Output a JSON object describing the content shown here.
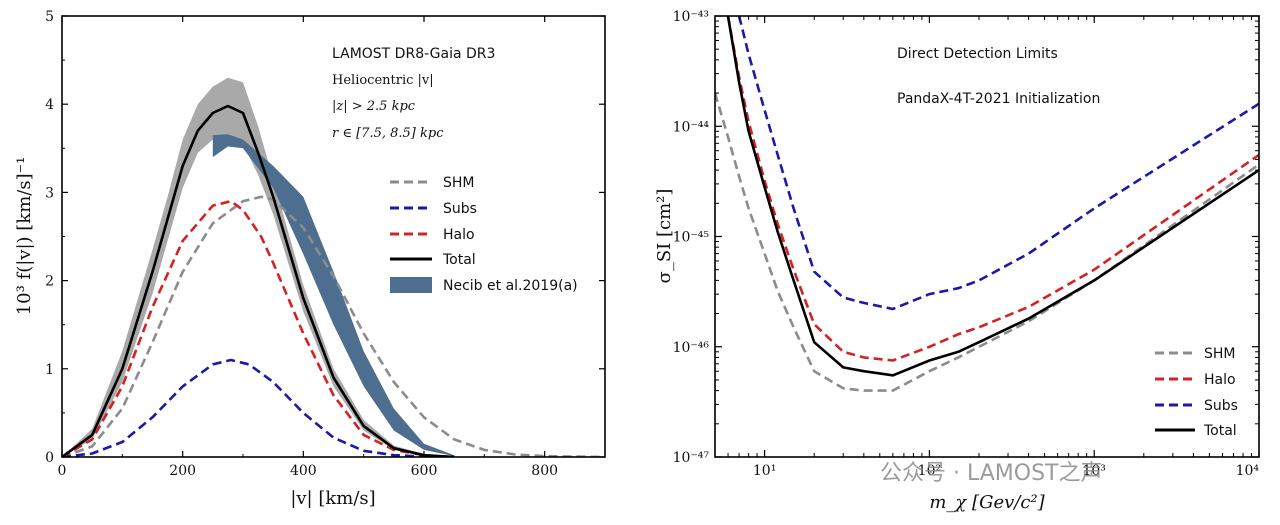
{
  "chart_data": [
    {
      "type": "line",
      "xlabel": "|v| [km/s]",
      "ylabel": "10³ f(|v|) [km/s]⁻¹",
      "xlim": [
        0,
        900
      ],
      "ylim": [
        0,
        5
      ],
      "xticks": [
        "0",
        "200",
        "400",
        "600",
        "800"
      ],
      "yticks": [
        "0",
        "1",
        "2",
        "3",
        "4",
        "5"
      ],
      "annotations": [
        "LAMOST DR8-Gaia DR3",
        "Heliocentric |v|",
        "|z| > 2.5 kpc",
        "r ∈ [7.5, 8.5] kpc"
      ],
      "legend_position": "center-right",
      "series": [
        {
          "name": "SHM",
          "style": "dashed",
          "color": "#8c8c8c",
          "x": [
            0,
            50,
            100,
            150,
            200,
            250,
            300,
            330,
            350,
            400,
            450,
            500,
            550,
            600,
            650,
            700,
            750,
            800,
            900
          ],
          "y": [
            0,
            0.12,
            0.55,
            1.3,
            2.1,
            2.65,
            2.9,
            2.95,
            2.92,
            2.6,
            2.05,
            1.4,
            0.85,
            0.45,
            0.2,
            0.08,
            0.03,
            0.01,
            0
          ]
        },
        {
          "name": "Subs",
          "style": "dashed",
          "color": "#1a1aa6",
          "x": [
            0,
            50,
            100,
            150,
            200,
            250,
            280,
            310,
            350,
            400,
            450,
            500,
            550,
            600,
            650
          ],
          "y": [
            0,
            0.04,
            0.17,
            0.45,
            0.8,
            1.05,
            1.1,
            1.05,
            0.85,
            0.5,
            0.22,
            0.07,
            0.02,
            0.005,
            0
          ]
        },
        {
          "name": "Halo",
          "style": "dashed",
          "color": "#d42222",
          "x": [
            0,
            50,
            100,
            150,
            200,
            250,
            280,
            300,
            330,
            350,
            400,
            450,
            500,
            550,
            600,
            650
          ],
          "y": [
            0,
            0.2,
            0.8,
            1.7,
            2.45,
            2.85,
            2.9,
            2.8,
            2.5,
            2.2,
            1.4,
            0.7,
            0.25,
            0.08,
            0.02,
            0
          ]
        },
        {
          "name": "Total",
          "style": "solid",
          "color": "#000000",
          "x": [
            0,
            50,
            100,
            150,
            175,
            200,
            225,
            250,
            275,
            300,
            325,
            350,
            400,
            450,
            500,
            550,
            600,
            650
          ],
          "y": [
            0,
            0.25,
            1.0,
            2.1,
            2.7,
            3.3,
            3.7,
            3.9,
            3.98,
            3.9,
            3.45,
            2.95,
            1.8,
            0.9,
            0.35,
            0.1,
            0.02,
            0
          ]
        }
      ],
      "bands": [
        {
          "name": "Necib et al.2019(a)",
          "color": "#4d6e8e",
          "x": [
            250,
            275,
            300,
            350,
            400,
            450,
            500,
            550,
            600,
            650
          ],
          "lower": [
            3.4,
            3.52,
            3.5,
            3.05,
            2.3,
            1.5,
            0.8,
            0.3,
            0.08,
            0.01
          ],
          "upper": [
            3.65,
            3.66,
            3.6,
            3.3,
            2.95,
            2.1,
            1.2,
            0.55,
            0.15,
            0.02
          ]
        },
        {
          "name": "",
          "color": "#9a9a9a",
          "x": [
            0,
            50,
            100,
            150,
            175,
            200,
            225,
            250,
            275,
            300,
            325,
            350,
            400,
            450,
            500,
            550,
            600,
            650
          ],
          "lower": [
            0,
            0.2,
            0.85,
            1.85,
            2.45,
            3.05,
            3.45,
            3.6,
            3.62,
            3.55,
            3.2,
            2.75,
            1.65,
            0.8,
            0.3,
            0.08,
            0.01,
            0
          ],
          "upper": [
            0,
            0.32,
            1.2,
            2.35,
            2.95,
            3.6,
            4.0,
            4.2,
            4.3,
            4.25,
            3.75,
            3.15,
            1.95,
            1.0,
            0.42,
            0.13,
            0.03,
            0
          ]
        }
      ]
    },
    {
      "type": "line",
      "log_x": true,
      "log_y": true,
      "xlabel": "m_χ [Gev/c²]",
      "ylabel": "σ_SI [cm²]",
      "xlim": [
        5,
        10000
      ],
      "ylim": [
        1e-47,
        1e-43
      ],
      "xticks": [
        "10¹",
        "10²",
        "10³",
        "10⁴"
      ],
      "yticks": [
        "10⁻⁴⁷",
        "10⁻⁴⁶",
        "10⁻⁴⁵",
        "10⁻⁴⁴",
        "10⁻⁴³"
      ],
      "annotations": [
        "Direct Detection Limits",
        "PandaX-4T-2021 Initialization"
      ],
      "legend_position": "bottom-right",
      "series": [
        {
          "name": "SHM",
          "style": "dashed",
          "color": "#8c8c8c",
          "x": [
            5,
            6,
            7,
            8,
            10,
            12,
            15,
            20,
            30,
            40,
            60,
            100,
            150,
            200,
            400,
            1000,
            10000
          ],
          "y": [
            2e-44,
            8e-45,
            3.5e-45,
            1.8e-45,
            7e-46,
            3.2e-46,
            1.5e-46,
            6e-47,
            4.2e-47,
            4e-47,
            4e-47,
            6e-47,
            8e-47,
            1e-46,
            1.7e-46,
            4e-46,
            4.5e-45
          ]
        },
        {
          "name": "Halo",
          "style": "dashed",
          "color": "#d42222",
          "x": [
            6,
            7,
            8,
            10,
            12,
            15,
            20,
            30,
            40,
            60,
            100,
            150,
            200,
            400,
            1000,
            10000
          ],
          "y": [
            1e-43,
            2.8e-44,
            1.1e-44,
            3.2e-45,
            1.3e-45,
            5e-46,
            1.6e-46,
            9e-47,
            8e-47,
            7.5e-47,
            1e-46,
            1.3e-46,
            1.5e-46,
            2.3e-46,
            5e-46,
            5.5e-45
          ]
        },
        {
          "name": "Subs",
          "style": "dashed",
          "color": "#1a1aa6",
          "x": [
            7,
            8,
            10,
            12,
            15,
            20,
            30,
            40,
            60,
            100,
            150,
            200,
            400,
            1000,
            10000
          ],
          "y": [
            1e-43,
            4.5e-44,
            1.4e-44,
            5.5e-45,
            1.8e-45,
            4.8e-46,
            2.8e-46,
            2.5e-46,
            2.2e-46,
            3e-46,
            3.4e-46,
            4e-46,
            7e-46,
            1.8e-45,
            1.6e-44
          ]
        },
        {
          "name": "Total",
          "style": "solid",
          "color": "#000000",
          "x": [
            6,
            7,
            8,
            10,
            12,
            15,
            20,
            30,
            40,
            60,
            100,
            150,
            200,
            400,
            1000,
            10000
          ],
          "y": [
            1e-43,
            2.5e-44,
            9e-45,
            2.8e-45,
            1.1e-45,
            4e-46,
            1.1e-46,
            6.5e-47,
            6e-47,
            5.5e-47,
            7.5e-47,
            9e-47,
            1.1e-46,
            1.8e-46,
            4e-46,
            4e-45
          ]
        }
      ]
    }
  ],
  "watermark": "公众号 · LAMOST之声"
}
